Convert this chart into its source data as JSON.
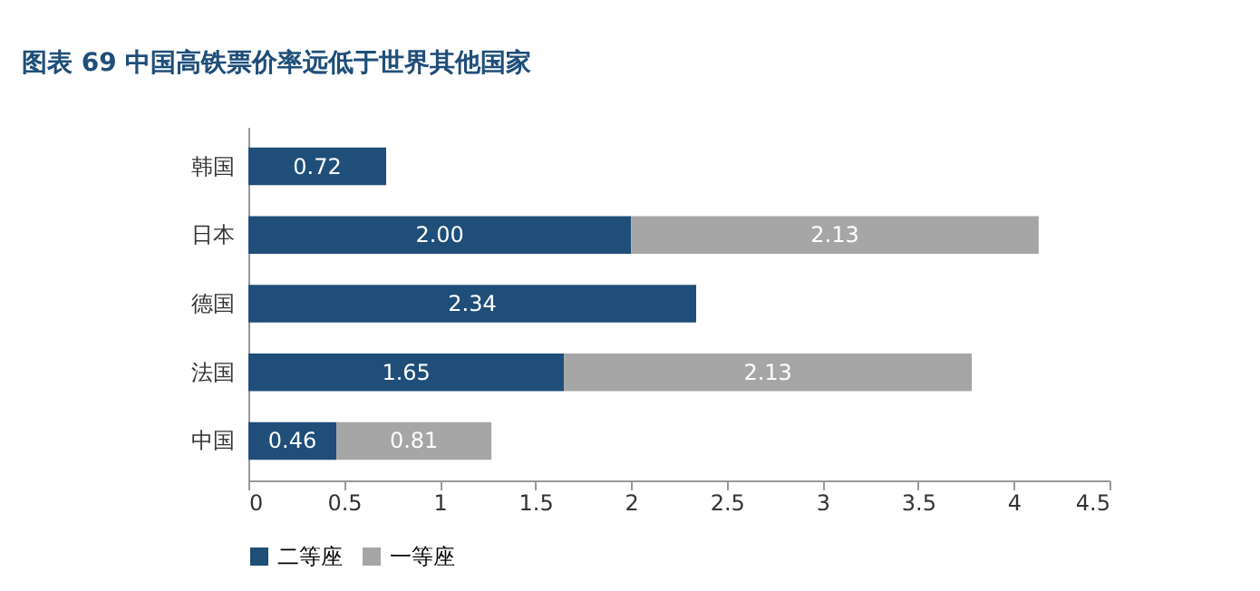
{
  "chart_data": {
    "type": "bar",
    "orientation": "horizontal",
    "stacked": true,
    "title": "图表 69   中国高铁票价率远低于世界其他国家",
    "categories": [
      "韩国",
      "日本",
      "德国",
      "法国",
      "中国"
    ],
    "series": [
      {
        "name": "二等座",
        "color": "#1f4e79",
        "values": [
          0.72,
          2.0,
          2.34,
          1.65,
          0.46
        ],
        "value_labels": [
          "0.72",
          "2.00",
          "2.34",
          "1.65",
          "0.46"
        ]
      },
      {
        "name": "一等座",
        "color": "#a6a6a6",
        "values": [
          null,
          2.13,
          null,
          2.13,
          0.81
        ],
        "value_labels": [
          null,
          "2.13",
          null,
          "2.13",
          "0.81"
        ]
      }
    ],
    "xlim": [
      0,
      4.5
    ],
    "xticks": [
      0,
      0.5,
      1,
      1.5,
      2,
      2.5,
      3,
      3.5,
      4,
      4.5
    ],
    "grid": false,
    "legend": "bottom"
  }
}
